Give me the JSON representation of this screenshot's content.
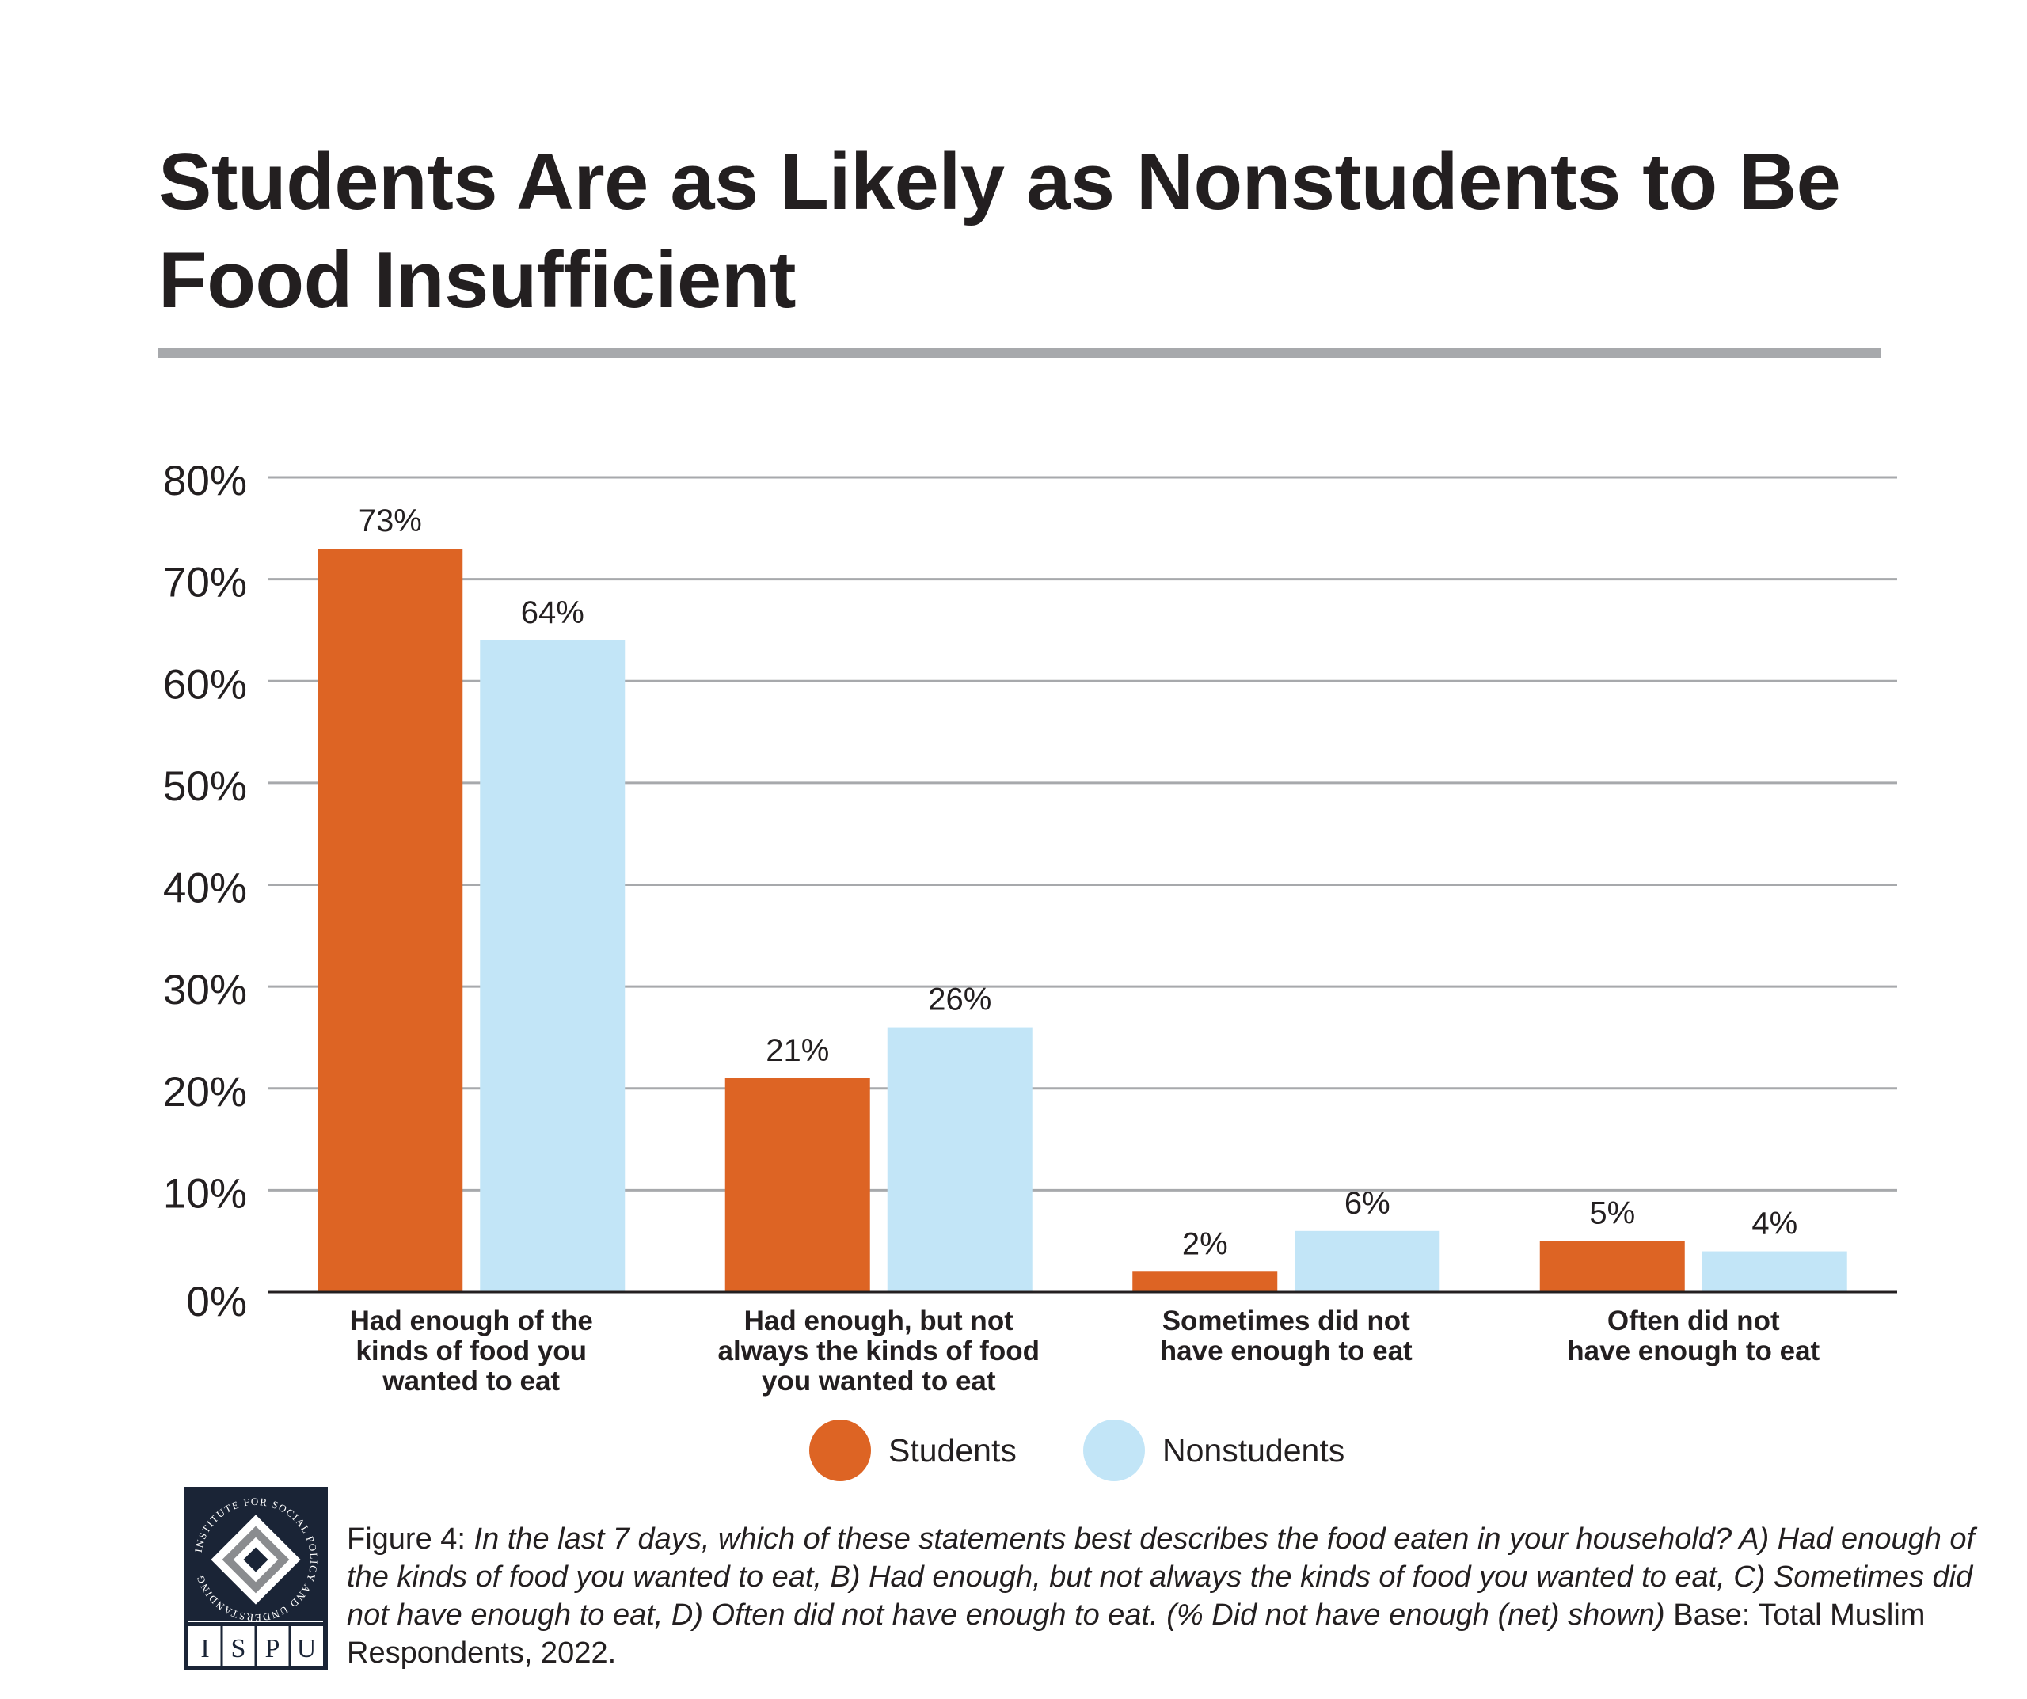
{
  "title": "Students Are as Likely as Nonstudents to Be Food Insufficient",
  "colors": {
    "students": "#dd6424",
    "nonstudents": "#c2e5f7",
    "grid": "#a7a9ac",
    "logo_bg": "#1a2436"
  },
  "chart_data": {
    "type": "bar",
    "title": "Students Are as Likely as Nonstudents to Be Food Insufficient",
    "xlabel": "",
    "ylabel": "",
    "ylim": [
      0,
      80
    ],
    "yticks": [
      "0%",
      "10%",
      "20%",
      "30%",
      "40%",
      "50%",
      "60%",
      "70%",
      "80%"
    ],
    "grid": true,
    "legend_position": "bottom",
    "categories": [
      "Had enough of the kinds of food you wanted to eat",
      "Had enough, but not always the kinds of food you wanted to eat",
      "Sometimes did not have enough to eat",
      "Often did not have enough to eat"
    ],
    "category_lines": [
      [
        "Had enough of the",
        "kinds of food you",
        "wanted to eat"
      ],
      [
        "Had enough, but not",
        "always the kinds of food",
        "you wanted to eat"
      ],
      [
        "Sometimes did not",
        "have enough to eat"
      ],
      [
        "Often did not",
        "have enough to eat"
      ]
    ],
    "series": [
      {
        "name": "Students",
        "values": [
          73,
          21,
          2,
          5
        ],
        "labels": [
          "73%",
          "21%",
          "2%",
          "5%"
        ]
      },
      {
        "name": "Nonstudents",
        "values": [
          64,
          26,
          6,
          4
        ],
        "labels": [
          "64%",
          "26%",
          "6%",
          "4%"
        ]
      }
    ]
  },
  "legend": {
    "students_label": "Students",
    "nonstudents_label": "Nonstudents"
  },
  "logo": {
    "arc_text": "INSTITUTE FOR SOCIAL POLICY AND UNDERSTANDING",
    "letters": [
      "I",
      "S",
      "P",
      "U"
    ]
  },
  "caption": {
    "figure_label": "Figure 4:",
    "question": "In the last 7 days, which of these statements best describes the food eaten in your household? A) Had enough of the kinds of food you wanted to eat, B) Had enough, but not always the kinds of food you wanted to eat, C) Sometimes did not have enough to eat, D) Often did not have enough to eat. (% Did not have enough (net) shown)",
    "base": "Base: Total Muslim Respondents, 2022."
  }
}
